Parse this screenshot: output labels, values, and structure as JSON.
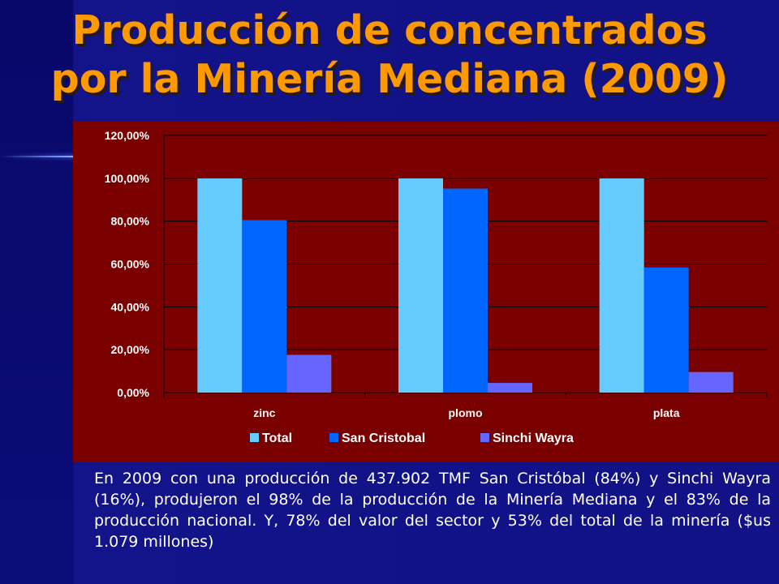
{
  "slide": {
    "title_line1": "Producción de concentrados",
    "title_line2": "por la Minería Mediana (2009)",
    "caption": "En 2009 con una producción de 437.902 TMF San Cristóbal (84%) y Sinchi Wayra (16%), produjeron el 98% de la producción de la Minería Mediana y el 83% de la producción nacional. Y, 78% del valor del sector y 53% del total de la minería ($us 1.079 millones)",
    "colors": {
      "title": "#ff9900",
      "background": "#121286",
      "chart_background": "#7a0000"
    }
  },
  "chart_data": {
    "type": "bar",
    "title": "",
    "xlabel": "",
    "ylabel": "",
    "categories": [
      "zinc",
      "plomo",
      "plata"
    ],
    "series": [
      {
        "name": "Total",
        "values": [
          100,
          100,
          100
        ],
        "color": "#66ccff"
      },
      {
        "name": "San Cristobal",
        "values": [
          80.5,
          95.2,
          58.4
        ],
        "color": "#0066ff"
      },
      {
        "name": "Sinchi Wayra",
        "values": [
          17.6,
          4.5,
          9.6
        ],
        "color": "#6666ff"
      }
    ],
    "ylim": [
      0,
      120
    ],
    "yticks": [
      0,
      20,
      40,
      60,
      80,
      100,
      120
    ],
    "ytick_labels": [
      "0,00%",
      "20,00%",
      "40,00%",
      "60,00%",
      "80,00%",
      "100,00%",
      "120,00%"
    ],
    "grid": true,
    "legend": "bottom"
  }
}
